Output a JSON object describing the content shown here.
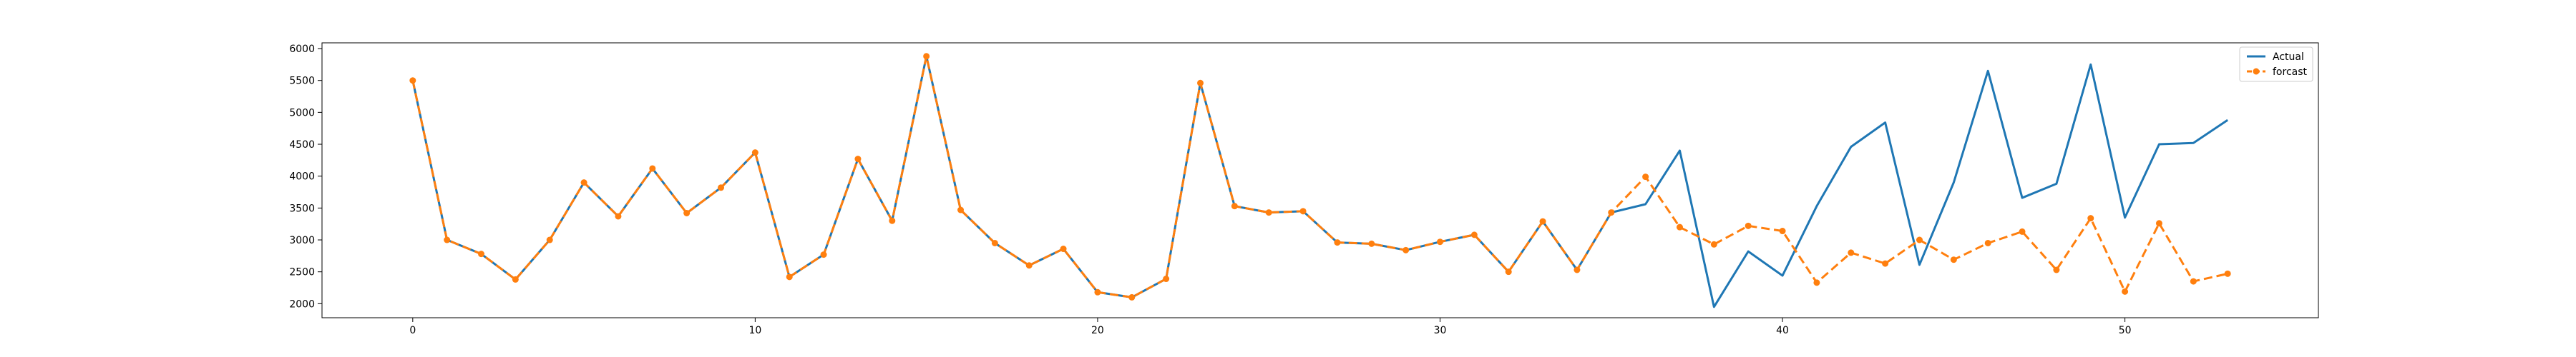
{
  "chart_data": {
    "type": "line",
    "title": "",
    "xlabel": "",
    "ylabel": "",
    "xlim": [
      -2.65,
      55.65
    ],
    "ylim": [
      1780,
      6090
    ],
    "xticks": [
      0,
      10,
      20,
      30,
      40,
      50
    ],
    "yticks": [
      2000,
      2500,
      3000,
      3500,
      4000,
      4500,
      5000,
      5500,
      6000
    ],
    "grid": false,
    "legend": "top-right",
    "series": [
      {
        "name": "Actual",
        "color": "#1f77b4",
        "style": "solid",
        "x": [
          0,
          1,
          2,
          3,
          4,
          5,
          6,
          7,
          8,
          9,
          10,
          11,
          12,
          13,
          14,
          15,
          16,
          17,
          18,
          19,
          20,
          21,
          22,
          23,
          24,
          25,
          26,
          27,
          28,
          29,
          30,
          31,
          32,
          33,
          34,
          35,
          36,
          37,
          38,
          39,
          40,
          41,
          42,
          43,
          44,
          45,
          46,
          47,
          48,
          49,
          50,
          51,
          52,
          53
        ],
        "values": [
          5500,
          3000,
          2780,
          2380,
          3000,
          3900,
          3370,
          4120,
          3420,
          3820,
          4370,
          2420,
          2770,
          4270,
          3300,
          5880,
          3470,
          2950,
          2600,
          2860,
          2180,
          2100,
          2390,
          5460,
          3530,
          3430,
          3450,
          2960,
          2940,
          2840,
          2970,
          3080,
          2500,
          3290,
          2530,
          3430,
          3560,
          4400,
          1950,
          2820,
          2440,
          3530,
          4460,
          4840,
          2610,
          3900,
          5650,
          3660,
          3880,
          5750,
          3350,
          4500,
          4520,
          4880
        ]
      },
      {
        "name": "forcast",
        "color": "#ff7f0e",
        "style": "dashed",
        "marker": "circle",
        "x": [
          0,
          1,
          2,
          3,
          4,
          5,
          6,
          7,
          8,
          9,
          10,
          11,
          12,
          13,
          14,
          15,
          16,
          17,
          18,
          19,
          20,
          21,
          22,
          23,
          24,
          25,
          26,
          27,
          28,
          29,
          30,
          31,
          32,
          33,
          34,
          35,
          36,
          37,
          38,
          39,
          40,
          41,
          42,
          43,
          44,
          45,
          46,
          47,
          48,
          49,
          50,
          51,
          52,
          53
        ],
        "values": [
          5500,
          3000,
          2780,
          2380,
          3000,
          3900,
          3370,
          4120,
          3420,
          3820,
          4370,
          2420,
          2770,
          4270,
          3300,
          5880,
          3470,
          2950,
          2600,
          2860,
          2180,
          2100,
          2390,
          5460,
          3530,
          3430,
          3450,
          2960,
          2940,
          2840,
          2970,
          3080,
          2500,
          3290,
          2530,
          3430,
          3990,
          3200,
          2930,
          3220,
          3140,
          2330,
          2800,
          2630,
          3000,
          2690,
          2950,
          3130,
          2530,
          3340,
          2190,
          3260,
          2350,
          2470
        ]
      }
    ]
  }
}
